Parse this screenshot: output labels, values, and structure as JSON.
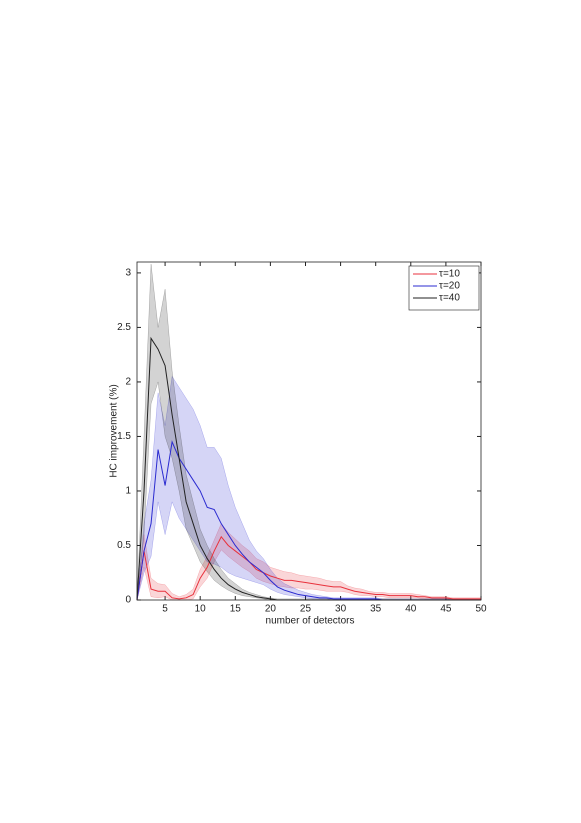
{
  "chart_data": {
    "type": "line",
    "xlabel": "number of detectors",
    "ylabel": "HC improvement (%)",
    "x": [
      1,
      2,
      3,
      4,
      5,
      6,
      7,
      8,
      9,
      10,
      11,
      12,
      13,
      14,
      15,
      16,
      17,
      18,
      19,
      20,
      21,
      22,
      23,
      24,
      25,
      26,
      27,
      28,
      29,
      30,
      31,
      32,
      33,
      34,
      35,
      36,
      37,
      38,
      39,
      40,
      41,
      42,
      43,
      44,
      45,
      46,
      47,
      48,
      49,
      50
    ],
    "xlim": [
      1,
      50
    ],
    "ylim": [
      0,
      3.1
    ],
    "xticks": [
      5,
      10,
      15,
      20,
      25,
      30,
      35,
      40,
      45,
      50
    ],
    "yticks": [
      0,
      0.5,
      1,
      1.5,
      2,
      2.5,
      3
    ],
    "legend": "upper right",
    "series": [
      {
        "name": "τ=10",
        "color": "#e8313c",
        "values": [
          0,
          0.45,
          0.1,
          0.08,
          0.08,
          0.02,
          0.01,
          0.02,
          0.05,
          0.2,
          0.3,
          0.45,
          0.58,
          0.5,
          0.45,
          0.4,
          0.35,
          0.28,
          0.25,
          0.22,
          0.2,
          0.18,
          0.18,
          0.17,
          0.16,
          0.15,
          0.14,
          0.13,
          0.12,
          0.12,
          0.1,
          0.08,
          0.07,
          0.06,
          0.05,
          0.05,
          0.04,
          0.04,
          0.04,
          0.04,
          0.03,
          0.03,
          0.02,
          0.02,
          0.02,
          0.01,
          0.01,
          0.01,
          0.01,
          0.01
        ],
        "upper": [
          0,
          0.6,
          0.2,
          0.15,
          0.14,
          0.06,
          0.03,
          0.05,
          0.1,
          0.28,
          0.4,
          0.55,
          0.7,
          0.62,
          0.56,
          0.5,
          0.45,
          0.38,
          0.35,
          0.3,
          0.28,
          0.26,
          0.25,
          0.23,
          0.22,
          0.21,
          0.2,
          0.18,
          0.17,
          0.17,
          0.13,
          0.11,
          0.1,
          0.08,
          0.07,
          0.07,
          0.06,
          0.06,
          0.06,
          0.06,
          0.05,
          0.04,
          0.03,
          0.03,
          0.03,
          0.02,
          0.02,
          0.02,
          0.02,
          0.02
        ],
        "lower": [
          0,
          0.3,
          0.03,
          0.02,
          0.03,
          0,
          0,
          0,
          0.01,
          0.12,
          0.2,
          0.35,
          0.46,
          0.4,
          0.35,
          0.3,
          0.26,
          0.2,
          0.17,
          0.15,
          0.13,
          0.12,
          0.11,
          0.11,
          0.1,
          0.1,
          0.09,
          0.08,
          0.08,
          0.08,
          0.07,
          0.05,
          0.04,
          0.04,
          0.03,
          0.03,
          0.02,
          0.02,
          0.02,
          0.02,
          0.02,
          0.01,
          0.01,
          0.01,
          0.01,
          0,
          0,
          0,
          0,
          0
        ]
      },
      {
        "name": "τ=20",
        "color": "#2b2bd0",
        "values": [
          0,
          0.45,
          0.7,
          1.38,
          1.05,
          1.45,
          1.3,
          1.2,
          1.1,
          1.0,
          0.85,
          0.83,
          0.7,
          0.6,
          0.5,
          0.42,
          0.35,
          0.3,
          0.25,
          0.18,
          0.12,
          0.09,
          0.07,
          0.05,
          0.04,
          0.03,
          0.02,
          0.02,
          0.01,
          0.01,
          0.01,
          0.01,
          0.01,
          0.01,
          0.01,
          0,
          0,
          0,
          0,
          0,
          0,
          0,
          0,
          0,
          0,
          0,
          0,
          0,
          0,
          0
        ],
        "upper": [
          0,
          0.7,
          1.1,
          1.9,
          1.6,
          2.05,
          1.95,
          1.85,
          1.75,
          1.6,
          1.4,
          1.4,
          1.3,
          1.05,
          0.85,
          0.7,
          0.55,
          0.45,
          0.38,
          0.28,
          0.2,
          0.15,
          0.12,
          0.09,
          0.07,
          0.05,
          0.04,
          0.03,
          0.02,
          0.02,
          0.02,
          0.02,
          0.02,
          0.02,
          0.02,
          0.01,
          0.01,
          0.01,
          0.01,
          0.01,
          0.01,
          0.01,
          0.01,
          0.01,
          0.01,
          0.01,
          0.01,
          0.01,
          0.01,
          0.01
        ],
        "lower": [
          0,
          0.25,
          0.4,
          0.9,
          0.6,
          0.9,
          0.75,
          0.65,
          0.55,
          0.45,
          0.35,
          0.33,
          0.3,
          0.25,
          0.22,
          0.2,
          0.18,
          0.16,
          0.14,
          0.1,
          0.07,
          0.05,
          0.04,
          0.03,
          0.02,
          0.01,
          0.01,
          0.01,
          0,
          0,
          0,
          0,
          0,
          0,
          0,
          0,
          0,
          0,
          0,
          0,
          0,
          0,
          0,
          0,
          0,
          0,
          0,
          0,
          0,
          0
        ]
      },
      {
        "name": "τ=40",
        "color": "#222222",
        "values": [
          0,
          1.0,
          2.4,
          2.3,
          2.15,
          1.7,
          1.3,
          0.9,
          0.7,
          0.5,
          0.38,
          0.28,
          0.2,
          0.14,
          0.1,
          0.07,
          0.05,
          0.03,
          0.02,
          0.01,
          0,
          0,
          0,
          0,
          0,
          0,
          0,
          0,
          0,
          0,
          0,
          0,
          0,
          0,
          0,
          0,
          0,
          0,
          0,
          0,
          0,
          0,
          0,
          0,
          0,
          0,
          0,
          0,
          0,
          0
        ],
        "upper": [
          0,
          1.5,
          3.08,
          2.5,
          2.85,
          2.1,
          1.6,
          1.15,
          0.9,
          0.65,
          0.5,
          0.38,
          0.28,
          0.2,
          0.15,
          0.1,
          0.07,
          0.05,
          0.03,
          0.02,
          0.01,
          0.01,
          0.01,
          0.01,
          0.01,
          0.01,
          0.01,
          0.01,
          0.01,
          0.01,
          0.01,
          0.01,
          0.01,
          0.01,
          0.01,
          0.01,
          0.01,
          0.01,
          0.01,
          0.01,
          0.01,
          0.01,
          0.01,
          0.01,
          0.01,
          0.01,
          0.01,
          0.01,
          0.01,
          0.01
        ],
        "lower": [
          0,
          0.6,
          1.8,
          2.0,
          1.5,
          1.3,
          1.0,
          0.65,
          0.5,
          0.35,
          0.26,
          0.18,
          0.13,
          0.09,
          0.06,
          0.04,
          0.03,
          0.02,
          0.01,
          0,
          0,
          0,
          0,
          0,
          0,
          0,
          0,
          0,
          0,
          0,
          0,
          0,
          0,
          0,
          0,
          0,
          0,
          0,
          0,
          0,
          0,
          0,
          0,
          0,
          0,
          0,
          0,
          0,
          0,
          0
        ]
      }
    ]
  }
}
